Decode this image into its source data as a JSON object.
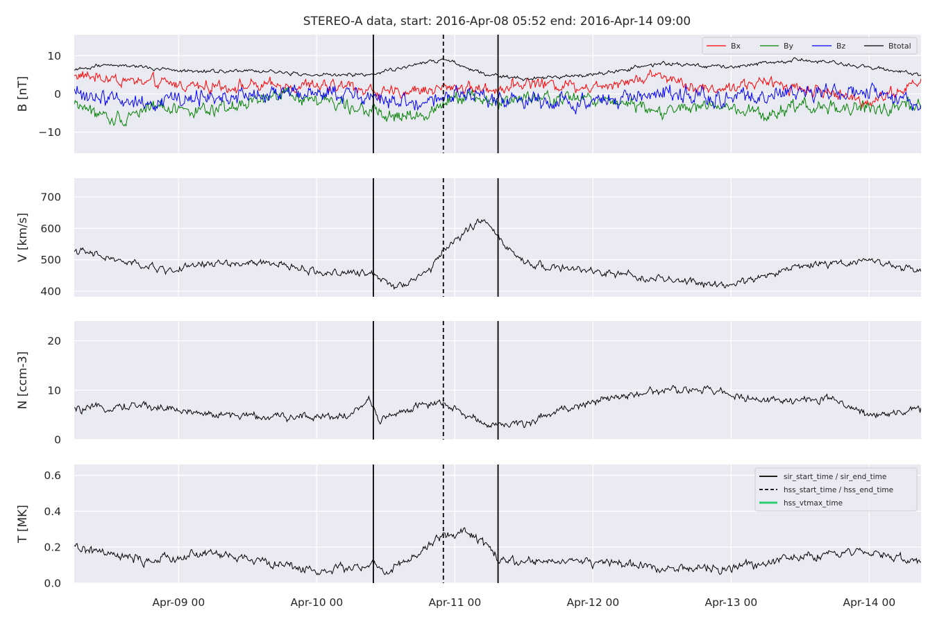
{
  "colors": {
    "bx": "#ff0000",
    "by": "#008000",
    "bz": "#0000ff",
    "btotal": "#000000",
    "trace": "#000000",
    "sir": "#000000",
    "hss": "#000000",
    "vtmax": "#2ecc71",
    "panel_bg": "#eaeaf2"
  },
  "chart_data": {
    "type": "line",
    "title": "STEREO-A data, start: 2016-Apr-08 05:52  end: 2016-Apr-14 09:00",
    "x_unit": "time (2016)",
    "xlim": [
      "2016-04-08 05:52",
      "2016-04-14 09:00"
    ],
    "x_ticks": [
      {
        "time": "2016-04-09 00:00",
        "label": "Apr-09 00"
      },
      {
        "time": "2016-04-10 00:00",
        "label": "Apr-10 00"
      },
      {
        "time": "2016-04-11 00:00",
        "label": "Apr-11 00"
      },
      {
        "time": "2016-04-12 00:00",
        "label": "Apr-12 00"
      },
      {
        "time": "2016-04-13 00:00",
        "label": "Apr-13 00"
      },
      {
        "time": "2016-04-14 00:00",
        "label": "Apr-14 00"
      }
    ],
    "event_lines": {
      "sir_start_time": "2016-04-10 09:50",
      "hss_start_time": "2016-04-10 22:00",
      "sir_end_time": "2016-04-11 07:30"
    },
    "legend_events": [
      {
        "label": "sir_start_time / sir_end_time",
        "style": "solid"
      },
      {
        "label": "hss_start_time / hss_end_time",
        "style": "dashed"
      },
      {
        "label": "hss_vtmax_time",
        "style": "solid-green"
      }
    ],
    "panels": [
      {
        "id": "b",
        "ylabel": "B [nT]",
        "ylim": [
          -15.5,
          15.5
        ],
        "yticks": [
          -10,
          0,
          10
        ],
        "ytick_labels": [
          "−10",
          "0",
          "10"
        ],
        "legend": [
          "Bx",
          "By",
          "Bz",
          "Btotal"
        ],
        "series": [
          {
            "name": "Bx",
            "color_key": "bx",
            "noise": 1.6,
            "points": [
              [
                "2016-04-08 05:52",
                5
              ],
              [
                "2016-04-08 18:00",
                3
              ],
              [
                "2016-04-09 06:00",
                2
              ],
              [
                "2016-04-09 18:00",
                2
              ],
              [
                "2016-04-10 06:00",
                2
              ],
              [
                "2016-04-10 12:00",
                0
              ],
              [
                "2016-04-10 18:00",
                1
              ],
              [
                "2016-04-11 00:00",
                2
              ],
              [
                "2016-04-11 06:00",
                1
              ],
              [
                "2016-04-11 12:00",
                3
              ],
              [
                "2016-04-12 00:00",
                2
              ],
              [
                "2016-04-12 08:00",
                4
              ],
              [
                "2016-04-12 12:00",
                5
              ],
              [
                "2016-04-12 20:00",
                1
              ],
              [
                "2016-04-13 06:00",
                3
              ],
              [
                "2016-04-13 18:00",
                0
              ],
              [
                "2016-04-14 00:00",
                -2
              ],
              [
                "2016-04-14 09:00",
                3
              ]
            ]
          },
          {
            "name": "By",
            "color_key": "by",
            "noise": 1.8,
            "points": [
              [
                "2016-04-08 05:52",
                -2
              ],
              [
                "2016-04-08 12:00",
                -7
              ],
              [
                "2016-04-08 20:00",
                -3
              ],
              [
                "2016-04-09 06:00",
                -5
              ],
              [
                "2016-04-09 18:00",
                0
              ],
              [
                "2016-04-10 06:00",
                -3
              ],
              [
                "2016-04-10 12:00",
                -6
              ],
              [
                "2016-04-10 18:00",
                -6
              ],
              [
                "2016-04-11 00:00",
                0
              ],
              [
                "2016-04-11 06:00",
                -2
              ],
              [
                "2016-04-11 18:00",
                -1
              ],
              [
                "2016-04-12 06:00",
                -2
              ],
              [
                "2016-04-12 12:00",
                -5
              ],
              [
                "2016-04-12 20:00",
                -3
              ],
              [
                "2016-04-13 06:00",
                -6
              ],
              [
                "2016-04-13 12:00",
                -3
              ],
              [
                "2016-04-14 00:00",
                -4
              ],
              [
                "2016-04-14 09:00",
                -3
              ]
            ]
          },
          {
            "name": "Bz",
            "color_key": "bz",
            "noise": 2.2,
            "points": [
              [
                "2016-04-08 05:52",
                0
              ],
              [
                "2016-04-08 18:00",
                -2
              ],
              [
                "2016-04-09 06:00",
                -1
              ],
              [
                "2016-04-09 18:00",
                0
              ],
              [
                "2016-04-10 06:00",
                0
              ],
              [
                "2016-04-10 18:00",
                -3
              ],
              [
                "2016-04-11 00:00",
                0
              ],
              [
                "2016-04-11 12:00",
                -2
              ],
              [
                "2016-04-12 00:00",
                -2
              ],
              [
                "2016-04-12 12:00",
                0
              ],
              [
                "2016-04-13 00:00",
                -1
              ],
              [
                "2016-04-13 12:00",
                0
              ],
              [
                "2016-04-14 00:00",
                0
              ],
              [
                "2016-04-14 09:00",
                -3
              ]
            ]
          },
          {
            "name": "Btotal",
            "color_key": "btotal",
            "noise": 0.5,
            "points": [
              [
                "2016-04-08 05:52",
                6
              ],
              [
                "2016-04-08 12:00",
                8
              ],
              [
                "2016-04-09 00:00",
                6
              ],
              [
                "2016-04-09 12:00",
                6
              ],
              [
                "2016-04-10 00:00",
                5
              ],
              [
                "2016-04-10 09:00",
                5
              ],
              [
                "2016-04-10 18:00",
                8
              ],
              [
                "2016-04-10 22:00",
                9
              ],
              [
                "2016-04-11 06:00",
                5
              ],
              [
                "2016-04-11 12:00",
                4
              ],
              [
                "2016-04-12 00:00",
                5
              ],
              [
                "2016-04-12 12:00",
                8
              ],
              [
                "2016-04-13 00:00",
                7
              ],
              [
                "2016-04-13 12:00",
                9
              ],
              [
                "2016-04-14 00:00",
                7
              ],
              [
                "2016-04-14 09:00",
                5
              ]
            ]
          }
        ]
      },
      {
        "id": "v",
        "ylabel": "V [km/s]",
        "ylim": [
          382,
          760
        ],
        "yticks": [
          400,
          500,
          600,
          700
        ],
        "ytick_labels": [
          "400",
          "500",
          "600",
          "700"
        ],
        "series": [
          {
            "name": "V",
            "color_key": "trace",
            "noise": 12,
            "points": [
              [
                "2016-04-08 05:52",
                530
              ],
              [
                "2016-04-08 14:00",
                495
              ],
              [
                "2016-04-08 22:00",
                465
              ],
              [
                "2016-04-09 06:00",
                490
              ],
              [
                "2016-04-09 18:00",
                485
              ],
              [
                "2016-04-10 00:00",
                460
              ],
              [
                "2016-04-10 09:50",
                455
              ],
              [
                "2016-04-10 14:00",
                415
              ],
              [
                "2016-04-10 20:00",
                470
              ],
              [
                "2016-04-10 22:00",
                530
              ],
              [
                "2016-04-11 00:00",
                560
              ],
              [
                "2016-04-11 03:00",
                610
              ],
              [
                "2016-04-11 06:00",
                625
              ],
              [
                "2016-04-11 08:00",
                555
              ],
              [
                "2016-04-11 12:00",
                490
              ],
              [
                "2016-04-11 20:00",
                470
              ],
              [
                "2016-04-12 06:00",
                450
              ],
              [
                "2016-04-12 18:00",
                425
              ],
              [
                "2016-04-13 00:00",
                420
              ],
              [
                "2016-04-13 12:00",
                480
              ],
              [
                "2016-04-14 00:00",
                500
              ],
              [
                "2016-04-14 09:00",
                460
              ]
            ]
          }
        ]
      },
      {
        "id": "n",
        "ylabel": "N [ccm-3]",
        "ylim": [
          0,
          24
        ],
        "yticks": [
          0,
          10,
          20
        ],
        "ytick_labels": [
          "0",
          "10",
          "20"
        ],
        "series": [
          {
            "name": "N",
            "color_key": "trace",
            "noise": 0.8,
            "points": [
              [
                "2016-04-08 05:52",
                6
              ],
              [
                "2016-04-08 18:00",
                7
              ],
              [
                "2016-04-09 06:00",
                5
              ],
              [
                "2016-04-09 18:00",
                4.5
              ],
              [
                "2016-04-10 06:00",
                5
              ],
              [
                "2016-04-10 09:00",
                8
              ],
              [
                "2016-04-10 11:00",
                4
              ],
              [
                "2016-04-10 18:00",
                7
              ],
              [
                "2016-04-10 22:00",
                7
              ],
              [
                "2016-04-11 06:00",
                3
              ],
              [
                "2016-04-11 12:00",
                3
              ],
              [
                "2016-04-11 18:00",
                6
              ],
              [
                "2016-04-12 06:00",
                9
              ],
              [
                "2016-04-12 12:00",
                10
              ],
              [
                "2016-04-12 20:00",
                10
              ],
              [
                "2016-04-13 06:00",
                8
              ],
              [
                "2016-04-13 18:00",
                8
              ],
              [
                "2016-04-14 00:00",
                5
              ],
              [
                "2016-04-14 09:00",
                6
              ]
            ]
          }
        ]
      },
      {
        "id": "t",
        "ylabel": "T [MK]",
        "ylim": [
          0,
          0.66
        ],
        "yticks": [
          0.0,
          0.2,
          0.4,
          0.6
        ],
        "ytick_labels": [
          "0.0",
          "0.2",
          "0.4",
          "0.6"
        ],
        "series": [
          {
            "name": "T",
            "color_key": "trace",
            "noise": 0.025,
            "points": [
              [
                "2016-04-08 05:52",
                0.2
              ],
              [
                "2016-04-08 18:00",
                0.12
              ],
              [
                "2016-04-09 06:00",
                0.17
              ],
              [
                "2016-04-09 18:00",
                0.1
              ],
              [
                "2016-04-10 00:00",
                0.07
              ],
              [
                "2016-04-10 09:50",
                0.1
              ],
              [
                "2016-04-10 12:00",
                0.05
              ],
              [
                "2016-04-10 18:00",
                0.17
              ],
              [
                "2016-04-10 22:00",
                0.27
              ],
              [
                "2016-04-11 02:00",
                0.28
              ],
              [
                "2016-04-11 06:00",
                0.2
              ],
              [
                "2016-04-11 08:00",
                0.11
              ],
              [
                "2016-04-11 18:00",
                0.13
              ],
              [
                "2016-04-12 06:00",
                0.1
              ],
              [
                "2016-04-12 18:00",
                0.08
              ],
              [
                "2016-04-13 00:00",
                0.08
              ],
              [
                "2016-04-13 12:00",
                0.15
              ],
              [
                "2016-04-14 00:00",
                0.17
              ],
              [
                "2016-04-14 09:00",
                0.12
              ]
            ]
          }
        ]
      }
    ]
  }
}
